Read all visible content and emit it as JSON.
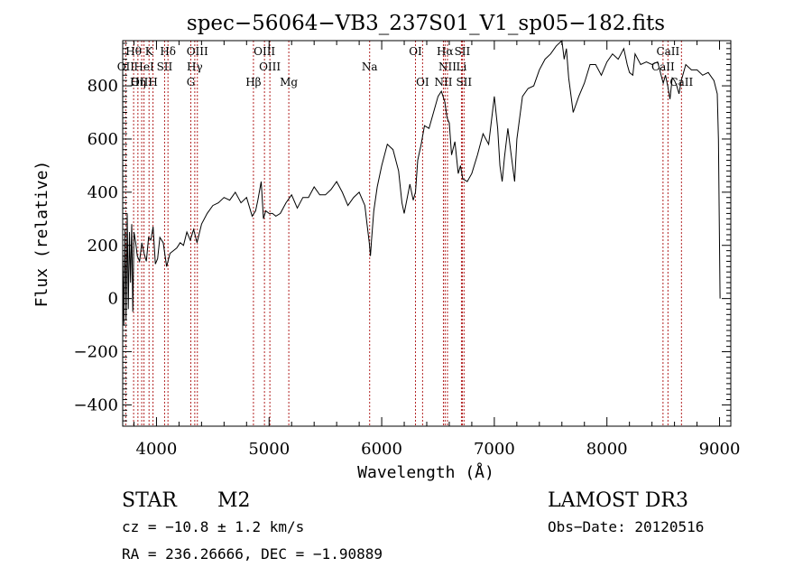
{
  "chart_data": {
    "type": "line",
    "title": "spec−56064−VB3_237S01_V1_sp05−182.fits",
    "xlabel": "Wavelength (Å)",
    "ylabel": "Flux (relative)",
    "xlim": [
      3700,
      9100
    ],
    "ylim": [
      -480,
      970
    ],
    "x_ticks": [
      4000,
      5000,
      6000,
      7000,
      8000,
      9000
    ],
    "y_ticks": [
      -400,
      -200,
      0,
      200,
      400,
      600,
      800
    ],
    "x_tick_labels": [
      "4000",
      "5000",
      "6000",
      "7000",
      "8000",
      "9000"
    ],
    "y_tick_labels": [
      "−400",
      "−200",
      "0",
      "200",
      "400",
      "600",
      "800"
    ],
    "series": [
      {
        "color": "#000000",
        "x": [
          3700,
          3710,
          3720,
          3730,
          3740,
          3750,
          3760,
          3770,
          3780,
          3790,
          3800,
          3815,
          3830,
          3850,
          3870,
          3890,
          3910,
          3930,
          3950,
          3970,
          3990,
          4010,
          4030,
          4060,
          4090,
          4120,
          4150,
          4180,
          4210,
          4240,
          4270,
          4300,
          4330,
          4360,
          4400,
          4450,
          4500,
          4550,
          4600,
          4650,
          4700,
          4750,
          4800,
          4850,
          4880,
          4900,
          4930,
          4950,
          4970,
          5000,
          5030,
          5060,
          5100,
          5150,
          5200,
          5250,
          5300,
          5350,
          5400,
          5450,
          5500,
          5550,
          5600,
          5650,
          5700,
          5750,
          5800,
          5850,
          5870,
          5890,
          5900,
          5910,
          5930,
          5960,
          6000,
          6050,
          6100,
          6150,
          6180,
          6200,
          6250,
          6280,
          6300,
          6320,
          6350,
          6380,
          6420,
          6460,
          6500,
          6530,
          6560,
          6580,
          6600,
          6620,
          6650,
          6680,
          6700,
          6720,
          6760,
          6800,
          6850,
          6900,
          6950,
          7000,
          7030,
          7050,
          7070,
          7090,
          7120,
          7150,
          7180,
          7200,
          7250,
          7300,
          7350,
          7400,
          7450,
          7500,
          7550,
          7600,
          7620,
          7640,
          7660,
          7700,
          7750,
          7800,
          7850,
          7900,
          7950,
          8000,
          8050,
          8100,
          8150,
          8180,
          8200,
          8230,
          8250,
          8300,
          8350,
          8400,
          8450,
          8500,
          8520,
          8540,
          8560,
          8580,
          8600,
          8620,
          8640,
          8660,
          8700,
          8750,
          8800,
          8850,
          8900,
          8950,
          8980,
          8990,
          9000,
          9005
        ],
        "y": [
          180,
          -100,
          260,
          -80,
          320,
          -40,
          250,
          60,
          280,
          -50,
          250,
          210,
          160,
          140,
          210,
          170,
          140,
          230,
          220,
          270,
          130,
          150,
          230,
          210,
          120,
          170,
          180,
          190,
          210,
          200,
          250,
          220,
          260,
          210,
          280,
          320,
          350,
          360,
          380,
          370,
          400,
          360,
          380,
          310,
          330,
          370,
          440,
          300,
          330,
          320,
          320,
          310,
          320,
          360,
          390,
          340,
          380,
          380,
          420,
          390,
          390,
          410,
          440,
          400,
          350,
          380,
          400,
          350,
          280,
          210,
          160,
          220,
          330,
          420,
          500,
          580,
          560,
          480,
          360,
          320,
          430,
          370,
          400,
          520,
          580,
          650,
          640,
          700,
          760,
          780,
          740,
          680,
          660,
          540,
          590,
          470,
          500,
          450,
          440,
          470,
          540,
          620,
          580,
          760,
          640,
          500,
          440,
          530,
          640,
          540,
          440,
          600,
          760,
          790,
          800,
          860,
          900,
          920,
          950,
          980,
          900,
          940,
          830,
          700,
          760,
          810,
          880,
          880,
          840,
          890,
          920,
          900,
          940,
          880,
          850,
          840,
          920,
          880,
          890,
          880,
          890,
          810,
          840,
          800,
          750,
          830,
          820,
          800,
          770,
          820,
          880,
          860,
          860,
          840,
          850,
          820,
          770,
          600,
          200,
          0
        ]
      }
    ],
    "line_markers": [
      {
        "label": "Hθ",
        "x": 3797,
        "row": 0
      },
      {
        "label": "K",
        "x": 3934,
        "row": 0
      },
      {
        "label": "Hδ",
        "x": 4102,
        "row": 0
      },
      {
        "label": "OIII",
        "x": 4363,
        "row": 0
      },
      {
        "label": "OIII",
        "x": 4959,
        "row": 0
      },
      {
        "label": "OI",
        "x": 6300,
        "row": 0
      },
      {
        "label": "Hα",
        "x": 6563,
        "row": 0
      },
      {
        "label": "SII",
        "x": 6716,
        "row": 0
      },
      {
        "label": "CaII",
        "x": 8542,
        "row": 0
      },
      {
        "label": "OII",
        "x": 3727,
        "row": 1
      },
      {
        "label": "HeI",
        "x": 3889,
        "row": 1
      },
      {
        "label": "SII",
        "x": 4072,
        "row": 1
      },
      {
        "label": "Hγ",
        "x": 4340,
        "row": 1
      },
      {
        "label": "OIII",
        "x": 5007,
        "row": 1
      },
      {
        "label": "Na",
        "x": 5893,
        "row": 1
      },
      {
        "label": "NII",
        "x": 6584,
        "row": 1
      },
      {
        "label": "Li",
        "x": 6708,
        "row": 1
      },
      {
        "label": "CaII",
        "x": 8498,
        "row": 1
      },
      {
        "label": "OIII",
        "x": 3869,
        "row": 2
      },
      {
        "label": "Hη",
        "x": 3835,
        "row": 2
      },
      {
        "label": "H",
        "x": 3969,
        "row": 2
      },
      {
        "label": "G",
        "x": 4305,
        "row": 2
      },
      {
        "label": "Hβ",
        "x": 4861,
        "row": 2
      },
      {
        "label": "Mg",
        "x": 5175,
        "row": 2
      },
      {
        "label": "OI",
        "x": 6363,
        "row": 2
      },
      {
        "label": "NII",
        "x": 6548,
        "row": 2
      },
      {
        "label": "SII",
        "x": 6731,
        "row": 2
      },
      {
        "label": "CaII",
        "x": 8662,
        "row": 2
      }
    ]
  },
  "info": {
    "class": "STAR",
    "subclass": "M2",
    "survey": "LAMOST DR3",
    "cz": "cz = −10.8 ± 1.2 km/s",
    "obs_date": "Obs−Date: 20120516",
    "coords": "RA = 236.26666, DEC =  −1.90889"
  }
}
